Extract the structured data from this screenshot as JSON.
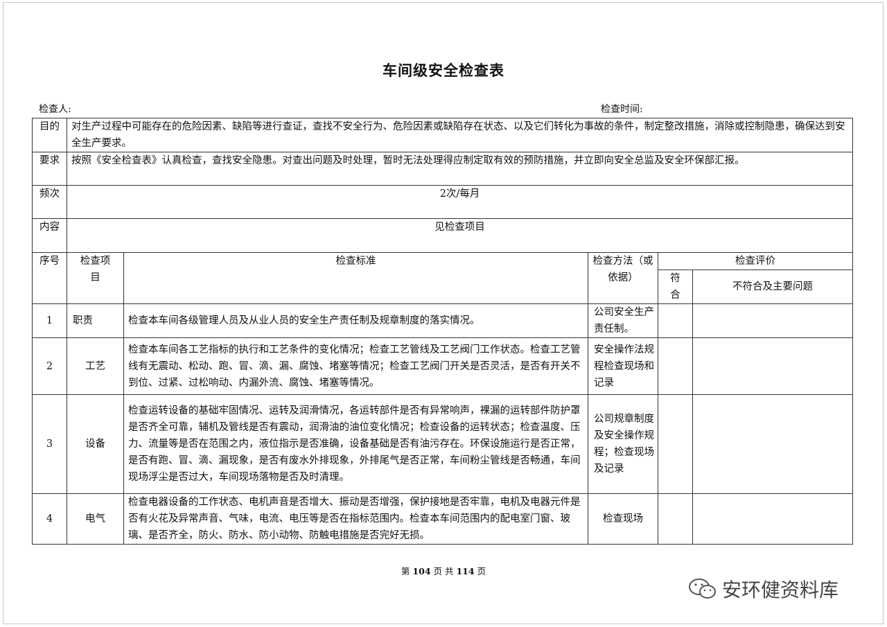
{
  "title": "车间级安全检查表",
  "inspector_label": "检查人:",
  "time_label": "检查时间:",
  "info_rows": [
    {
      "label": "目的",
      "text": "对生产过程中可能存在的危险因素、缺陷等进行查证，查找不安全行为、危险因素或缺陷存在状态、以及它们转化为事故的条件，制定整改措施，消除或控制隐患，确保达到安全生产要求。"
    },
    {
      "label": "要求",
      "text": "按照《安全检查表》认真检查，查找安全隐患。对查出问题及时处理，暂时无法处理得应制定取有效的预防措施，并立即向安全总监及安全环保部汇报。"
    },
    {
      "label": "频次",
      "text": "2次/每月"
    },
    {
      "label": "内容",
      "text": "见检查项目"
    }
  ],
  "headers": {
    "no": "序号",
    "item": "检查项目",
    "standard": "检查标准",
    "method": "检查方法（或依据）",
    "evaluation": "检查评价",
    "conform": "符合",
    "nonconform": "不符合及主要问题"
  },
  "rows": [
    {
      "no": "1",
      "item": "职责",
      "standard": "检查本车间各级管理人员及从业人员的安全生产责任制及规章制度的落实情况。",
      "method": "公司安全生产责任制。",
      "conform": "",
      "nonconform": ""
    },
    {
      "no": "2",
      "item": "工艺",
      "standard": "检查本车间各工艺指标的执行和工艺条件的变化情况；检查工艺管线及工艺阀门工作状态。检查工艺管线有无震动、松动、跑、冒、滴、漏、腐蚀、堵塞等情况；检查工艺阀门开关是否灵活，是否有开关不到位、过紧、过松响动、内漏外流、腐蚀、堵塞等情况。",
      "method": "安全操作法规程检查现场和记录",
      "conform": "",
      "nonconform": ""
    },
    {
      "no": "3",
      "item": "设备",
      "standard": "检查运转设备的基础牢固情况、运转及润滑情况，各运转部件是否有异常响声，裸漏的运转部件防护罩是否齐全可靠，辅机及管线是否有震动，润滑油的油位变化情况；检查设备的运转状态；检查温度、压力、流量等是否在范围之内，液位指示是否准确，设备基础是否有油污存在。环保设施运行是否正常，是否有跑、冒、滴、漏现象，是否有废水外排现象，外排尾气是否正常，车间粉尘管线是否畅通，车间现场浮尘是否过大，车间现场落物是否及时清理。",
      "method": "公司规章制度及安全操作规程；检查现场及记录",
      "conform": "",
      "nonconform": ""
    },
    {
      "no": "4",
      "item": "电气",
      "standard": "检查电器设备的工作状态、电机声音是否增大、振动是否增强，保护接地是否牢靠，电机及电器元件是否有火花及异常声音、气味，电流、电压等是否在指标范围内。检查本车间范围内的配电室门窗、玻璃、是否齐全，防火、防水、防小动物、防触电措施是否完好无损。",
      "method": "检查现场",
      "conform": "",
      "nonconform": ""
    }
  ],
  "footer": {
    "prefix": "第",
    "page": "104",
    "middle": "页 共",
    "total": "114",
    "suffix": "页"
  },
  "watermark": {
    "text": "安环健资料库",
    "icon": "wechat-icon"
  }
}
